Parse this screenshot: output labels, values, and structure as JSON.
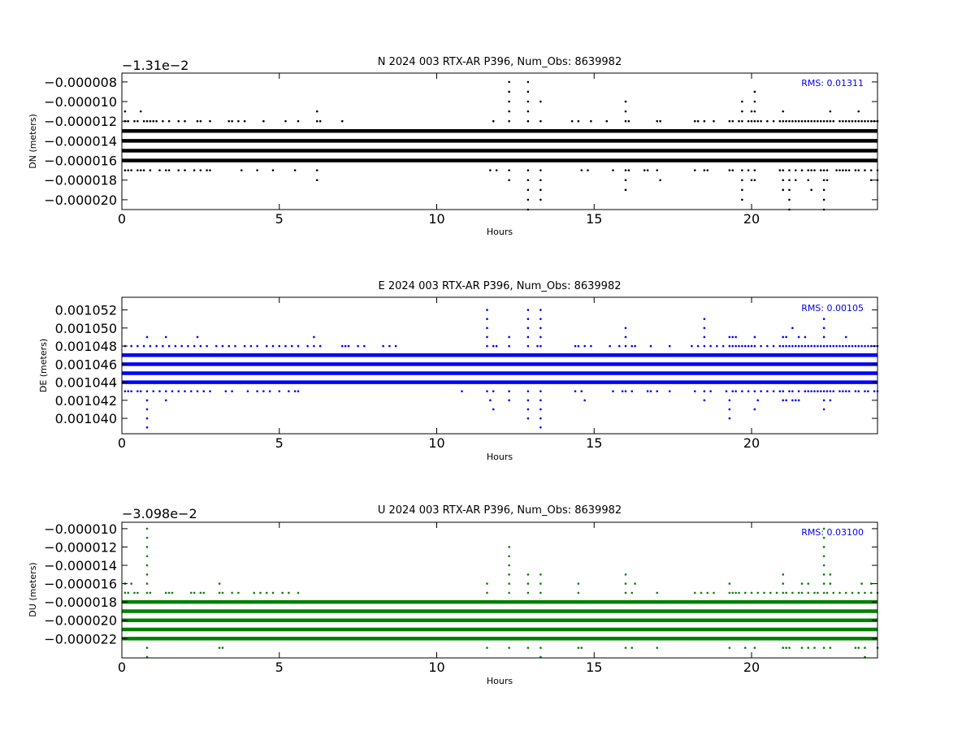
{
  "chart_data": [
    {
      "type": "scatter",
      "title": "N 2024 003 RTX-AR  P396, Num_Obs: 8639982",
      "xlabel": "Hours",
      "ylabel": "DN (meters)",
      "y_offset_label": "−1.31e−2",
      "rms_label": "RMS:  0.01311",
      "color": "#000000",
      "xlim": [
        0,
        24
      ],
      "ylim": [
        -2.1e-05,
        -7.1e-06
      ],
      "xticks": [
        0,
        5,
        10,
        15,
        20
      ],
      "yticks": [
        -8e-06,
        -1e-05,
        -1.2e-05,
        -1.4e-05,
        -1.6e-05,
        -1.8e-05,
        -2e-05
      ],
      "ytick_labels": [
        "−0.000008",
        "−0.000010",
        "−0.000012",
        "−0.000014",
        "−0.000016",
        "−0.000018",
        "−0.000020"
      ],
      "dense_levels": [
        -1.3e-05,
        -1.4e-05,
        -1.5e-05,
        -1.6e-05
      ],
      "sparse_points": [
        {
          "y": -1.2e-05,
          "x": [
            0.1,
            0.2,
            0.4,
            0.5,
            0.7,
            0.8,
            0.9,
            1.0,
            1.1,
            1.3,
            1.5,
            1.8,
            2.0,
            2.4,
            2.5,
            2.8,
            3.4,
            3.5,
            3.7,
            3.9,
            4.5,
            5.2,
            5.6,
            6.2,
            6.3,
            7.0,
            11.8,
            12.3,
            12.9,
            13.3,
            14.3,
            14.5,
            14.9,
            15.4,
            16.0,
            16.1,
            17.0,
            17.1,
            18.2,
            18.3,
            18.5,
            18.8,
            19.3,
            19.4,
            19.6,
            19.7,
            19.9,
            20.0,
            20.1,
            20.2,
            20.3,
            20.5,
            20.7,
            20.9,
            21.0,
            21.1,
            21.2,
            21.3,
            21.4,
            21.5,
            21.6,
            21.7,
            21.8,
            21.9,
            22.0,
            22.1,
            22.2,
            22.3,
            22.4,
            22.5,
            22.6,
            22.8,
            22.9,
            23.0,
            23.1,
            23.2,
            23.3,
            23.4,
            23.5,
            23.6,
            23.7,
            23.8,
            23.9,
            24.0
          ]
        },
        {
          "y": -1.7e-05,
          "x": [
            0.1,
            0.2,
            0.3,
            0.5,
            0.6,
            0.7,
            0.9,
            1.2,
            1.4,
            1.5,
            1.8,
            2.0,
            2.3,
            2.5,
            2.7,
            2.8,
            3.8,
            4.3,
            4.8,
            5.5,
            6.2,
            11.7,
            11.9,
            12.3,
            12.9,
            13.3,
            14.6,
            14.8,
            15.6,
            16.0,
            16.1,
            16.6,
            16.7,
            17.0,
            18.2,
            18.5,
            18.6,
            19.3,
            19.4,
            19.7,
            19.9,
            20.1,
            20.9,
            21.0,
            21.2,
            21.4,
            21.6,
            21.8,
            21.9,
            22.0,
            22.2,
            22.3,
            22.4,
            22.7,
            22.8,
            22.9,
            23.0,
            23.1,
            23.3,
            23.4,
            23.6,
            23.8,
            24.0
          ]
        },
        {
          "y": -1.1e-05,
          "x": [
            0.1,
            0.6,
            6.2,
            12.3,
            12.9,
            16.0,
            19.7,
            20.0,
            20.1,
            21.0,
            22.5,
            23.4
          ]
        },
        {
          "y": -1e-05,
          "x": [
            12.3,
            12.9,
            13.3,
            16.0,
            19.7,
            20.1
          ]
        },
        {
          "y": -9e-06,
          "x": [
            12.3,
            12.9,
            20.1
          ]
        },
        {
          "y": -8e-06,
          "x": [
            12.3,
            12.9
          ]
        },
        {
          "y": -1.8e-05,
          "x": [
            6.2,
            12.3,
            12.9,
            13.3,
            16.0,
            17.1,
            19.7,
            20.0,
            20.1,
            21.0,
            21.2,
            21.4,
            21.8,
            22.3,
            22.4,
            23.8,
            24.0
          ]
        },
        {
          "y": -1.9e-05,
          "x": [
            12.9,
            13.3,
            16.0,
            19.7,
            21.0,
            21.2,
            21.9,
            22.3
          ]
        },
        {
          "y": -2e-05,
          "x": [
            12.9,
            13.3,
            19.7,
            21.2,
            22.3
          ]
        },
        {
          "y": -2.1e-05,
          "x": [
            12.9,
            21.2,
            22.3
          ]
        }
      ]
    },
    {
      "type": "scatter",
      "title": "E 2024 003 RTX-AR  P396, Num_Obs: 8639982",
      "xlabel": "Hours",
      "ylabel": "DE (meters)",
      "y_offset_label": "",
      "rms_label": "RMS:  0.00105",
      "color": "#0000ff",
      "xlim": [
        0,
        24
      ],
      "ylim": [
        0.0010383,
        0.0010534
      ],
      "xticks": [
        0,
        5,
        10,
        15,
        20
      ],
      "yticks": [
        0.00104,
        0.001042,
        0.001044,
        0.001046,
        0.001048,
        0.00105,
        0.001052
      ],
      "ytick_labels": [
        "0.001040",
        "0.001042",
        "0.001044",
        "0.001046",
        "0.001048",
        "0.001050",
        "0.001052"
      ],
      "dense_levels": [
        0.001047,
        0.001046,
        0.001045,
        0.001044
      ],
      "sparse_points": [
        {
          "y": 0.001048,
          "x": [
            0.1,
            0.3,
            0.5,
            0.7,
            0.9,
            1.1,
            1.3,
            1.5,
            1.7,
            1.9,
            2.1,
            2.3,
            2.5,
            2.7,
            3.0,
            3.2,
            3.4,
            3.6,
            3.9,
            4.1,
            4.3,
            4.6,
            4.8,
            5.0,
            5.2,
            5.4,
            5.6,
            5.9,
            6.1,
            6.3,
            7.0,
            7.1,
            7.2,
            7.5,
            7.7,
            8.3,
            8.5,
            8.7,
            11.6,
            11.8,
            11.9,
            12.3,
            12.9,
            13.2,
            13.3,
            14.4,
            14.5,
            14.7,
            14.9,
            15.5,
            15.8,
            16.0,
            16.2,
            16.3,
            16.8,
            17.4,
            18.1,
            18.3,
            18.5,
            18.7,
            18.9,
            19.1,
            19.3,
            19.4,
            19.5,
            19.6,
            19.7,
            19.8,
            19.9,
            20.0,
            20.1,
            20.3,
            20.5,
            20.7,
            20.9,
            21.0,
            21.1,
            21.2,
            21.3,
            21.4,
            21.5,
            21.6,
            21.7,
            21.8,
            21.9,
            22.0,
            22.1,
            22.2,
            22.3,
            22.4,
            22.5,
            22.6,
            22.7,
            22.8,
            22.9,
            23.0,
            23.1,
            23.2,
            23.3,
            23.4,
            23.5,
            23.6,
            23.7,
            23.8,
            23.9,
            24.0
          ]
        },
        {
          "y": 0.001043,
          "x": [
            0.1,
            0.2,
            0.3,
            0.5,
            0.6,
            0.8,
            1.0,
            1.2,
            1.4,
            1.6,
            1.8,
            2.0,
            2.2,
            2.4,
            2.6,
            2.8,
            3.3,
            3.5,
            4.0,
            4.3,
            4.5,
            4.7,
            5.0,
            5.3,
            5.5,
            5.6,
            10.8,
            11.6,
            11.8,
            12.3,
            12.9,
            13.3,
            14.4,
            14.6,
            15.6,
            15.9,
            16.0,
            16.2,
            16.7,
            16.8,
            17.0,
            17.4,
            18.2,
            18.5,
            18.7,
            19.2,
            19.4,
            19.5,
            19.7,
            19.9,
            20.1,
            20.3,
            20.5,
            20.7,
            20.9,
            21.0,
            21.2,
            21.3,
            21.5,
            21.7,
            21.8,
            21.9,
            22.0,
            22.1,
            22.2,
            22.3,
            22.4,
            22.5,
            22.6,
            22.8,
            22.9,
            23.0,
            23.1,
            23.3,
            23.4,
            23.6,
            23.7,
            23.9,
            24.0
          ]
        },
        {
          "y": 0.001049,
          "x": [
            0.8,
            1.4,
            2.4,
            6.1,
            11.6,
            12.3,
            12.9,
            13.3,
            16.0,
            18.5,
            19.3,
            19.4,
            19.5,
            20.1,
            21.0,
            21.1,
            21.5,
            21.7,
            22.3,
            23.0
          ]
        },
        {
          "y": 0.00105,
          "x": [
            11.6,
            12.9,
            13.3,
            16.0,
            18.5,
            21.3,
            22.3
          ]
        },
        {
          "y": 0.001051,
          "x": [
            11.6,
            12.9,
            13.3,
            18.5,
            22.3
          ]
        },
        {
          "y": 0.001052,
          "x": [
            11.6,
            12.9,
            13.3
          ]
        },
        {
          "y": 0.001042,
          "x": [
            0.8,
            1.4,
            11.7,
            12.3,
            12.9,
            13.3,
            14.7,
            18.5,
            19.3,
            20.2,
            21.0,
            21.1,
            21.3,
            21.4,
            21.5,
            22.3,
            22.5
          ]
        },
        {
          "y": 0.001041,
          "x": [
            0.8,
            11.8,
            12.9,
            13.3,
            19.3,
            20.1,
            22.3
          ]
        },
        {
          "y": 0.00104,
          "x": [
            0.8,
            12.9,
            13.3,
            19.3
          ]
        },
        {
          "y": 0.001039,
          "x": [
            0.8,
            13.3
          ]
        }
      ]
    },
    {
      "type": "scatter",
      "title": "U 2024 003 RTX-AR  P396, Num_Obs: 8639982",
      "xlabel": "Hours",
      "ylabel": "DU (meters)",
      "y_offset_label": "−3.098e−2",
      "rms_label": "RMS:  0.03100",
      "color": "#008000",
      "xlim": [
        0,
        24
      ],
      "ylim": [
        -2.41e-05,
        -9.3e-06
      ],
      "xticks": [
        0,
        5,
        10,
        15,
        20
      ],
      "yticks": [
        -1e-05,
        -1.2e-05,
        -1.4e-05,
        -1.6e-05,
        -1.8e-05,
        -2e-05,
        -2.2e-05
      ],
      "ytick_labels": [
        "−0.000010",
        "−0.000012",
        "−0.000014",
        "−0.000016",
        "−0.000018",
        "−0.000020",
        "−0.000022"
      ],
      "dense_levels": [
        -1.8e-05,
        -1.9e-05,
        -2e-05,
        -2.1e-05,
        -2.2e-05
      ],
      "sparse_points": [
        {
          "y": -1.7e-05,
          "x": [
            0.1,
            0.2,
            0.4,
            0.5,
            0.8,
            0.9,
            1.4,
            1.5,
            1.6,
            2.2,
            2.3,
            2.5,
            2.6,
            3.1,
            3.2,
            3.5,
            3.7,
            4.2,
            4.4,
            4.6,
            4.8,
            5.1,
            5.3,
            5.6,
            11.6,
            12.3,
            12.9,
            13.3,
            14.5,
            16.0,
            16.2,
            17.0,
            18.2,
            18.4,
            18.6,
            18.8,
            19.3,
            19.4,
            19.5,
            19.6,
            19.8,
            20.0,
            20.2,
            20.4,
            20.6,
            20.8,
            21.0,
            21.1,
            21.3,
            21.5,
            21.6,
            21.8,
            22.0,
            22.1,
            22.3,
            22.4,
            22.6,
            22.8,
            23.0,
            23.2,
            23.4,
            23.6,
            23.8,
            24.0
          ]
        },
        {
          "y": -1.6e-05,
          "x": [
            0.1,
            0.3,
            0.8,
            3.1,
            11.6,
            12.3,
            12.9,
            13.3,
            14.5,
            16.0,
            16.3,
            19.3,
            21.0,
            21.6,
            21.8,
            22.3,
            22.5,
            23.5,
            23.8
          ]
        },
        {
          "y": -1.5e-05,
          "x": [
            0.8,
            12.3,
            12.9,
            13.3,
            16.0,
            21.0,
            22.3,
            22.5
          ]
        },
        {
          "y": -1.4e-05,
          "x": [
            0.8,
            12.3,
            22.3
          ]
        },
        {
          "y": -1.3e-05,
          "x": [
            0.8,
            12.3,
            22.3
          ]
        },
        {
          "y": -1.2e-05,
          "x": [
            0.8,
            12.3,
            22.3
          ]
        },
        {
          "y": -1.1e-05,
          "x": [
            0.8,
            22.3
          ]
        },
        {
          "y": -1e-05,
          "x": [
            0.8,
            22.3
          ]
        },
        {
          "y": -2.3e-05,
          "x": [
            0.8,
            3.1,
            3.2,
            11.6,
            12.3,
            12.9,
            13.3,
            14.5,
            14.6,
            16.0,
            16.2,
            17.0,
            19.3,
            19.8,
            20.1,
            21.0,
            21.1,
            21.2,
            21.6,
            21.8,
            22.0,
            22.3,
            22.5,
            23.3,
            23.4,
            23.6,
            24.0
          ]
        },
        {
          "y": -2.4e-05,
          "x": [
            0.8,
            13.3,
            23.6
          ]
        }
      ]
    }
  ]
}
